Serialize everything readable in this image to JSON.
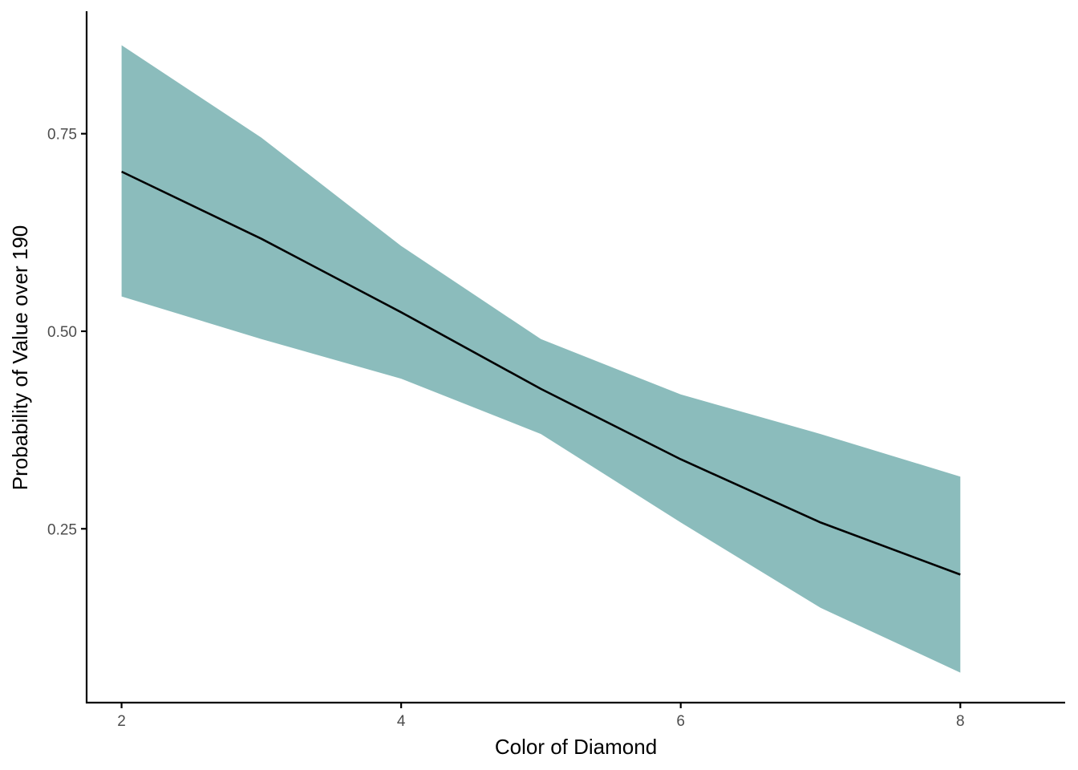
{
  "chart_data": {
    "type": "line",
    "title": "",
    "xlabel": "Color of Diamond",
    "ylabel": "Probability of Value over 190",
    "x": [
      2,
      3,
      4,
      5,
      6,
      7,
      8
    ],
    "series": [
      {
        "values": [
          0.702,
          0.617,
          0.524,
          0.427,
          0.338,
          0.258,
          0.192
        ],
        "lower": [
          0.544,
          0.49,
          0.44,
          0.37,
          0.258,
          0.15,
          0.068
        ],
        "upper": [
          0.862,
          0.745,
          0.608,
          0.49,
          0.42,
          0.37,
          0.316
        ]
      }
    ],
    "xlim": [
      1.75,
      8.75
    ],
    "ylim": [
      0.03,
      0.905
    ],
    "x_ticks": [
      "2",
      "4",
      "6",
      "8"
    ],
    "y_ticks": [
      "0.25",
      "0.50",
      "0.75"
    ],
    "grid": false,
    "colors": {
      "ribbon": "#8bbcbc",
      "line": "#000000",
      "axis": "#000000",
      "tick_text": "#4d4d4d"
    }
  }
}
